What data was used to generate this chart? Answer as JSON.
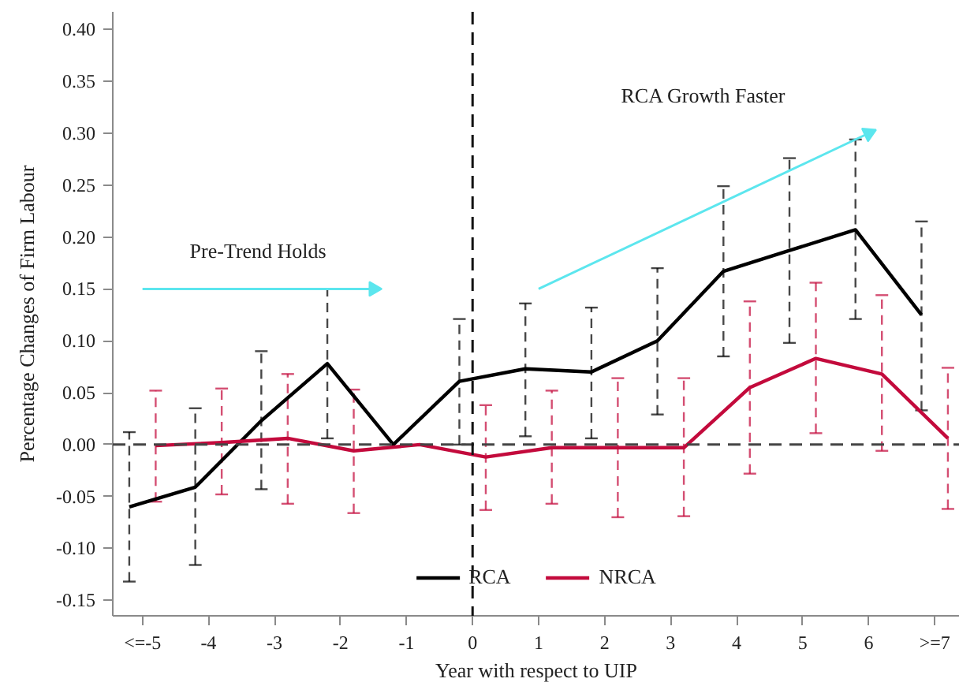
{
  "chart_data": {
    "type": "line",
    "xlabel": "Year with respect to UIP",
    "ylabel": "Percentage Changes of Firm Labour",
    "xlim": [
      -5.45,
      7.38
    ],
    "ylim": [
      -0.165,
      0.417
    ],
    "xticks": [
      {
        "value": -5,
        "label": "<=-5"
      },
      -4,
      -3,
      -2,
      -1,
      0,
      1,
      2,
      3,
      4,
      5,
      6,
      {
        "value": 7,
        "label": ">=7"
      }
    ],
    "yticks": [
      -0.15,
      {
        "value": -0.1,
        "label": "-0.10"
      },
      -0.05,
      {
        "value": 0,
        "label": "0.00"
      },
      0.05,
      {
        "value": 0.1,
        "label": "0.10"
      },
      0.15,
      {
        "value": 0.2,
        "label": "0.20"
      },
      0.25,
      {
        "value": 0.3,
        "label": "0.30"
      },
      0.35,
      {
        "value": 0.4,
        "label": "0.40"
      }
    ],
    "grid": false,
    "legend": "bottom",
    "annotations": [
      "Pre-Trend Holds",
      "RCA Growth Faster"
    ],
    "ref_lines": [
      {
        "axis": "y",
        "value": 0,
        "color": "#444444",
        "line_style": "dashed"
      },
      {
        "axis": "x",
        "value": 0,
        "color": "#111111",
        "line_style": "dashed"
      }
    ],
    "series": [
      {
        "name": "RCA",
        "color": "#000000",
        "x": [
          -5.2,
          -4.2,
          -3.2,
          -2.2,
          -1.2,
          -0.2,
          0.8,
          1.8,
          2.8,
          3.8,
          4.8,
          5.8,
          6.8
        ],
        "values": [
          -0.06,
          -0.041,
          0.023,
          0.078,
          0.0,
          0.061,
          0.073,
          0.07,
          0.1,
          0.167,
          0.187,
          0.207,
          0.125
        ],
        "errors": [
          [
            -0.132,
            0.012
          ],
          [
            -0.116,
            0.035
          ],
          [
            -0.043,
            0.09
          ],
          [
            0.006,
            0.15
          ],
          null,
          [
            0.0,
            0.121
          ],
          [
            0.008,
            0.136
          ],
          [
            0.006,
            0.132
          ],
          [
            0.029,
            0.17
          ],
          [
            0.085,
            0.249
          ],
          [
            0.098,
            0.276
          ],
          [
            0.121,
            0.294
          ],
          [
            0.033,
            0.215
          ]
        ]
      },
      {
        "name": "NRCA",
        "color": "#c30a3c",
        "x": [
          -4.8,
          -3.8,
          -2.8,
          -1.8,
          -0.8,
          0.2,
          1.2,
          2.2,
          3.2,
          4.2,
          5.2,
          6.2,
          7.2
        ],
        "values": [
          -0.001,
          0.002,
          0.006,
          -0.006,
          0.0,
          -0.012,
          -0.003,
          -0.003,
          -0.003,
          0.055,
          0.083,
          0.068,
          0.006
        ],
        "errors": [
          [
            -0.055,
            0.052
          ],
          [
            -0.048,
            0.054
          ],
          [
            -0.057,
            0.068
          ],
          [
            -0.066,
            0.053
          ],
          null,
          [
            -0.063,
            0.038
          ],
          [
            -0.057,
            0.052
          ],
          [
            -0.07,
            0.064
          ],
          [
            -0.069,
            0.064
          ],
          [
            -0.028,
            0.138
          ],
          [
            0.011,
            0.156
          ],
          [
            -0.006,
            0.144
          ],
          [
            -0.062,
            0.074
          ]
        ]
      },
      {
        "type": "line",
        "color": "#5ce6ee",
        "x": [
          -5.0,
          -1.5
        ],
        "values": [
          0.15,
          0.15
        ]
      },
      {
        "type": "line",
        "color": "#5ce6ee",
        "x": [
          1.0,
          6.0
        ],
        "values": [
          0.15,
          0.3
        ]
      }
    ]
  }
}
